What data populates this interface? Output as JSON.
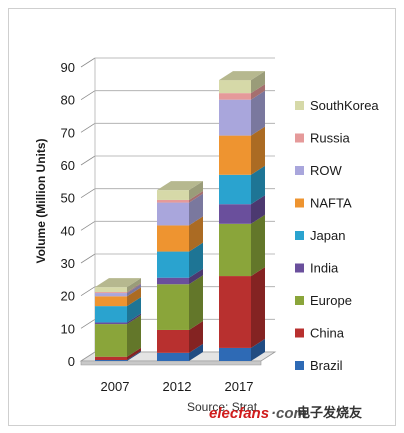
{
  "chart_data": {
    "type": "bar",
    "stacked": true,
    "three_d": true,
    "categories": [
      "2007",
      "2012",
      "2017"
    ],
    "ylabel": "Volume (Million Units)",
    "ylim": [
      0,
      90
    ],
    "yticks": [
      0,
      10,
      20,
      30,
      40,
      50,
      60,
      70,
      80,
      90
    ],
    "legend_position": "right",
    "series": [
      {
        "name": "Brazil",
        "color": "#2e6ab5",
        "values": [
          0.3,
          2.5,
          4
        ]
      },
      {
        "name": "China",
        "color": "#b8302f",
        "values": [
          1,
          7,
          22
        ]
      },
      {
        "name": "Europe",
        "color": "#8aa53a",
        "values": [
          10,
          14,
          16
        ]
      },
      {
        "name": "India",
        "color": "#6a4f9c",
        "values": [
          0.5,
          2,
          6
        ]
      },
      {
        "name": "Japan",
        "color": "#2aa3cf",
        "values": [
          5,
          8,
          9
        ]
      },
      {
        "name": "NAFTA",
        "color": "#ee9430",
        "values": [
          3,
          8,
          12
        ]
      },
      {
        "name": "ROW",
        "color": "#a9a6dc",
        "values": [
          1,
          7,
          11
        ]
      },
      {
        "name": "Russia",
        "color": "#e59a9a",
        "values": [
          0.3,
          0.8,
          2
        ]
      },
      {
        "name": "SouthKorea",
        "color": "#d6d9a8",
        "values": [
          1.5,
          3,
          4
        ]
      }
    ],
    "source": "Source: Strat"
  },
  "watermark": {
    "brand": "elecfans",
    "suffix": "·com",
    "cn": "电子发烧友"
  }
}
